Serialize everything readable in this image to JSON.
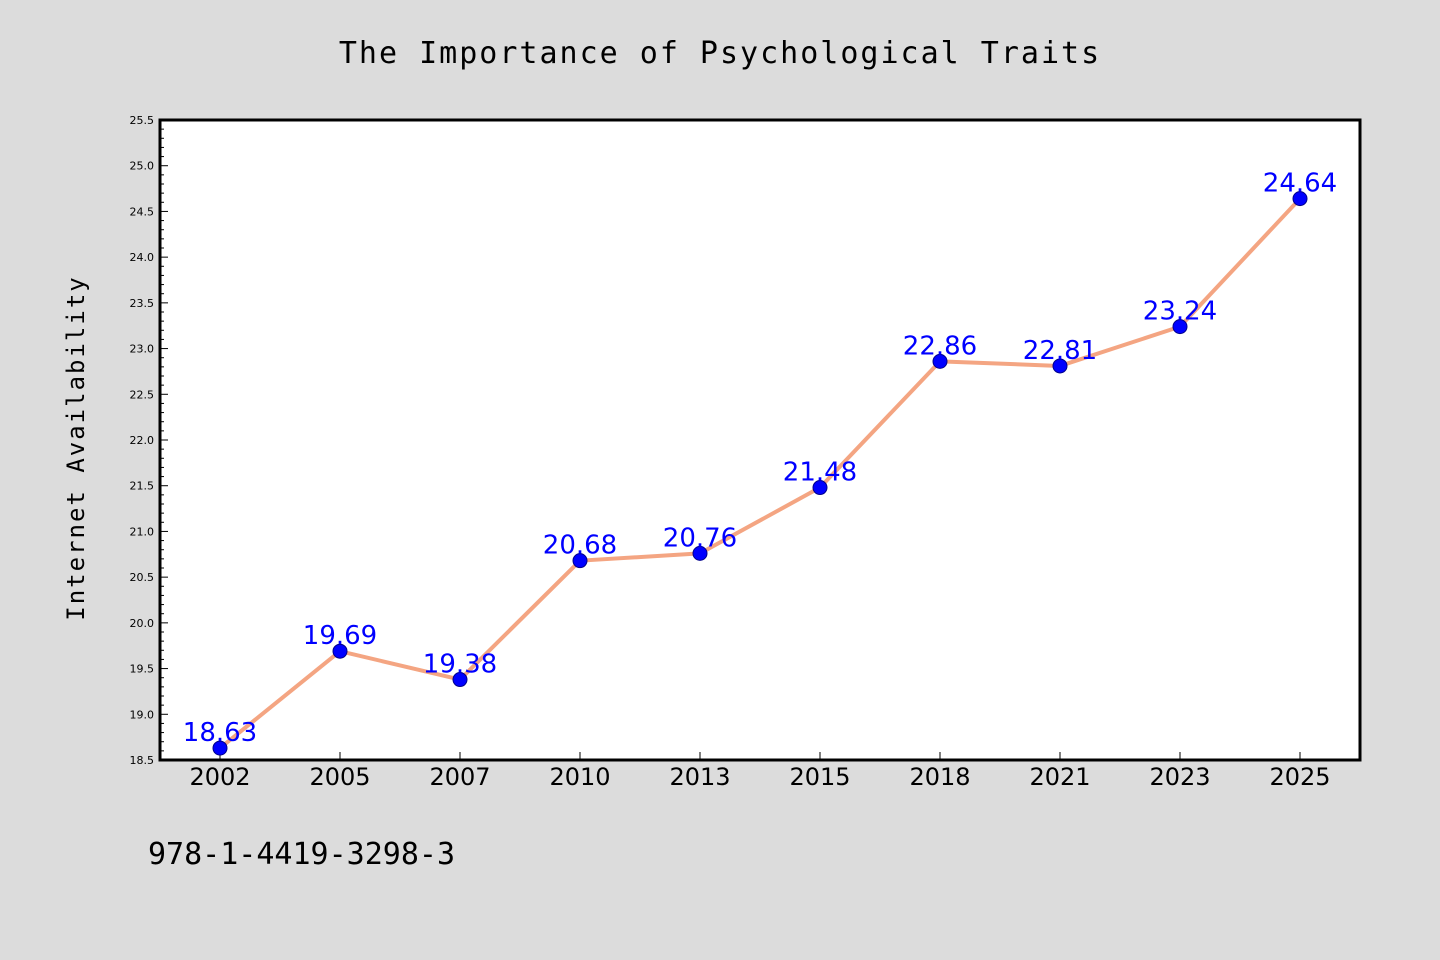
{
  "chart_data": {
    "type": "line",
    "title": "The Importance of Psychological Traits",
    "xlabel": "",
    "ylabel": "Internet Availability",
    "categories": [
      "2002",
      "2005",
      "2007",
      "2010",
      "2013",
      "2015",
      "2018",
      "2021",
      "2023",
      "2025"
    ],
    "series": [
      {
        "values": [
          18.63,
          19.69,
          19.38,
          20.68,
          20.76,
          21.48,
          22.86,
          22.81,
          23.24,
          24.64
        ],
        "labels": [
          "18.63",
          "19.69",
          "19.38",
          "20.68",
          "20.76",
          "21.48",
          "22.86",
          "22.81",
          "23.24",
          "24.64"
        ]
      }
    ],
    "ylim": [
      18.5,
      25.5
    ],
    "yticks": [
      "18.5",
      "19.0",
      "19.5",
      "20.0",
      "20.5",
      "21.0",
      "21.5",
      "22.0",
      "22.5",
      "23.0",
      "23.5",
      "24.0",
      "24.5",
      "25.0",
      "25.5"
    ],
    "grid": false,
    "legend": "none",
    "colors": {
      "line": "#f4a582",
      "marker": "#0000ff",
      "data_label": "#0000ff",
      "background": "#dcdcdc",
      "plot_background": "#ffffff"
    }
  },
  "caption": "978-1-4419-3298-3"
}
